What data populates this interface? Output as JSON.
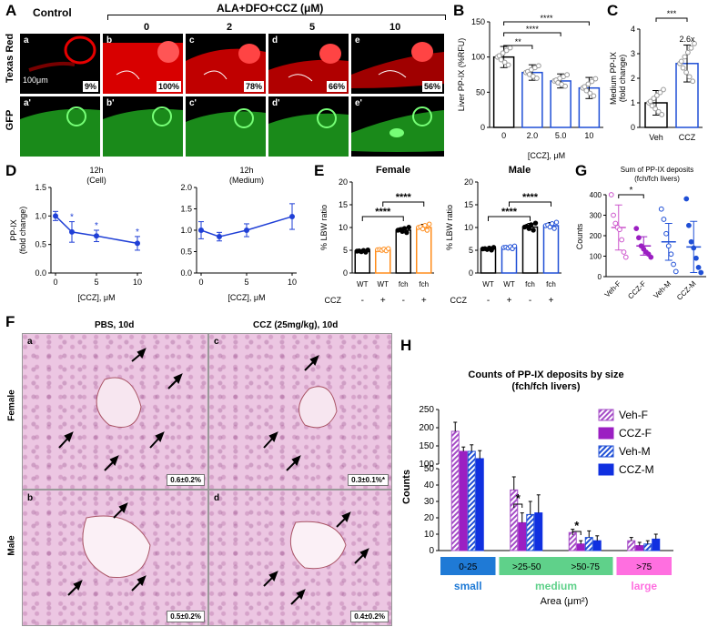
{
  "panelA": {
    "letter": "A",
    "control_label": "Control",
    "treatment_label": "ALA+DFO+CCZ (μM)",
    "conc_labels": [
      "0",
      "2",
      "5",
      "10"
    ],
    "row_labels": [
      "Texas Red",
      "GFP"
    ],
    "scale_bar": "100μm",
    "top_images": [
      {
        "letter": "a",
        "percent": "9%"
      },
      {
        "letter": "b",
        "percent": "100%"
      },
      {
        "letter": "c",
        "percent": "78%"
      },
      {
        "letter": "d",
        "percent": "66%"
      },
      {
        "letter": "e",
        "percent": "56%"
      }
    ],
    "bottom_images": [
      "a'",
      "b'",
      "c'",
      "d'",
      "e'"
    ],
    "colors": {
      "red": "#e60000",
      "green": "#1fa81f"
    }
  },
  "panelB": {
    "letter": "B",
    "chart_data": {
      "type": "bar",
      "categories": [
        "0",
        "2.0",
        "5.0",
        "10"
      ],
      "values": [
        100,
        78,
        66,
        56
      ],
      "errors": [
        15,
        11,
        10,
        15
      ],
      "ylabel": "Liver PP-IX (%RFU)",
      "xlabel": "[CCZ], μM",
      "ylim": [
        0,
        150
      ],
      "yticks": [
        "0",
        "50",
        "100",
        "150"
      ],
      "significance": [
        "**",
        "****",
        "****"
      ],
      "colors": [
        "#000000",
        "#1f4fd6",
        "#1f4fd6",
        "#1f4fd6"
      ]
    }
  },
  "panelC": {
    "letter": "C",
    "chart_data": {
      "type": "bar",
      "categories": [
        "Veh",
        "CCZ"
      ],
      "values": [
        1.0,
        2.6
      ],
      "errors": [
        0.5,
        0.75
      ],
      "ylabel": "Medium PP-IX (fold change)",
      "ylim": [
        0,
        4
      ],
      "yticks": [
        "0",
        "1",
        "2",
        "3",
        "4"
      ],
      "annotation": "2.6x",
      "significance": "***"
    }
  },
  "panelD": {
    "letter": "D",
    "chart_data": [
      {
        "type": "line",
        "title": "12h (Cell)",
        "ylabel": "PP-IX (fold change)",
        "xlabel": "[CCZ], μM",
        "x": [
          0,
          2,
          5,
          10
        ],
        "y": [
          1.0,
          0.72,
          0.65,
          0.52
        ],
        "errors": [
          0.08,
          0.18,
          0.1,
          0.12
        ],
        "xticks": [
          "0",
          "5",
          "10"
        ],
        "yticks": [
          "0.0",
          "0.5",
          "1.0",
          "1.5"
        ],
        "ylim": [
          0,
          1.5
        ],
        "stars": [
          "*",
          "*",
          "*"
        ]
      },
      {
        "type": "line",
        "title": "12h (Medium)",
        "xlabel": "[CCZ], μM",
        "x": [
          0,
          2,
          5,
          10
        ],
        "y": [
          1.0,
          0.85,
          1.0,
          1.32
        ],
        "errors": [
          0.2,
          0.1,
          0.15,
          0.3
        ],
        "xticks": [
          "0",
          "5",
          "10"
        ],
        "yticks": [
          "0.0",
          "0.5",
          "1.0",
          "1.5",
          "2.0"
        ],
        "ylim": [
          0,
          2.0
        ]
      }
    ]
  },
  "panelE": {
    "letter": "E",
    "chart_data": [
      {
        "type": "bar",
        "title": "Female",
        "ylabel": "% LBW ratio",
        "categories": [
          "WT",
          "WT",
          "fch",
          "fch"
        ],
        "ccz": [
          "-",
          "+",
          "-",
          "+"
        ],
        "ccz_label": "CCZ",
        "values": [
          4.8,
          5.1,
          9.4,
          10.0
        ],
        "errors": [
          0.25,
          0.25,
          0.6,
          0.7
        ],
        "ylim": [
          0,
          20
        ],
        "yticks": [
          "0",
          "5",
          "10",
          "15",
          "20"
        ],
        "colors": [
          "#000000",
          "#ff8c1a",
          "#000000",
          "#ff8c1a"
        ],
        "significance": [
          "****",
          "****"
        ]
      },
      {
        "type": "bar",
        "title": "Male",
        "ylabel": "% LBW ratio",
        "categories": [
          "WT",
          "WT",
          "fch",
          "fch"
        ],
        "ccz": [
          "-",
          "+",
          "-",
          "+"
        ],
        "ccz_label": "CCZ",
        "values": [
          5.3,
          5.6,
          10.1,
          10.4
        ],
        "errors": [
          0.3,
          0.3,
          0.8,
          0.7
        ],
        "ylim": [
          0,
          20
        ],
        "yticks": [
          "0",
          "5",
          "10",
          "15",
          "20"
        ],
        "colors": [
          "#000000",
          "#1f4fd6",
          "#000000",
          "#1f4fd6"
        ],
        "significance": [
          "****",
          "****"
        ]
      }
    ]
  },
  "panelG": {
    "letter": "G",
    "chart_data": {
      "type": "scatter",
      "title": "Sum of PP-IX deposits (fch/fch livers)",
      "title_lines": [
        "Sum of PP-IX deposits",
        "(fch/fch livers)"
      ],
      "ylabel": "Counts",
      "categories": [
        "Veh-F",
        "CCZ-F",
        "Veh-M",
        "CCZ-M"
      ],
      "means": [
        240,
        150,
        170,
        145
      ],
      "sd": [
        110,
        45,
        90,
        125
      ],
      "points": [
        [
          400,
          300,
          260,
          240,
          230,
          180,
          120,
          95
        ],
        [
          235,
          190,
          150,
          135,
          120,
          110,
          95
        ],
        [
          330,
          280,
          210,
          150,
          110,
          60,
          25
        ],
        [
          380,
          250,
          170,
          140,
          90,
          45,
          20
        ]
      ],
      "ylim": [
        0,
        400
      ],
      "yticks": [
        "0",
        "100",
        "200",
        "300",
        "400"
      ],
      "colors": [
        "#cc55cc",
        "#9b1fc2",
        "#1f4fd6",
        "#1f4fd6"
      ],
      "significance": "*"
    }
  },
  "panelF": {
    "letter": "F",
    "col_labels": [
      "PBS, 10d",
      "CCZ (25mg/kg), 10d"
    ],
    "row_labels": [
      "Female",
      "Male"
    ],
    "images": [
      {
        "letter": "a",
        "value": "0.6±0.2%"
      },
      {
        "letter": "c",
        "value": "0.3±0.1%*"
      },
      {
        "letter": "b",
        "value": "0.5±0.2%"
      },
      {
        "letter": "d",
        "value": "0.4±0.2%"
      }
    ]
  },
  "panelH": {
    "letter": "H",
    "chart_data": {
      "type": "bar",
      "title_lines": [
        "Counts of PP-IX deposits by size",
        "(fch/fch livers)"
      ],
      "ylabel": "Counts",
      "xlabel": "Area (μm²)",
      "categories": [
        "0-25",
        ">25-50",
        ">50-75",
        ">75"
      ],
      "size_labels": [
        "small",
        "medium",
        "large"
      ],
      "series": [
        {
          "name": "Veh-F",
          "values": [
            190,
            37,
            11,
            6
          ],
          "errors": [
            25,
            8,
            2,
            2
          ],
          "color": "#a54dc7",
          "hatched": true
        },
        {
          "name": "CCZ-F",
          "values": [
            135,
            17,
            4,
            3
          ],
          "errors": [
            12,
            6,
            2,
            2
          ],
          "color": "#9b1fc2",
          "hatched": false
        },
        {
          "name": "Veh-M",
          "values": [
            135,
            22,
            8,
            4
          ],
          "errors": [
            18,
            8,
            4,
            2
          ],
          "color": "#1f4fd6",
          "hatched": true
        },
        {
          "name": "CCZ-M",
          "values": [
            115,
            23,
            6,
            7
          ],
          "errors": [
            22,
            11,
            3,
            3
          ],
          "color": "#1030e0",
          "hatched": false
        }
      ],
      "yticks_low": [
        "0",
        "10",
        "20",
        "30",
        "40",
        "50"
      ],
      "yticks_high": [
        "100",
        "150",
        "200",
        "250"
      ],
      "significance": [
        "*",
        "*"
      ],
      "size_colors": [
        "#1f7ad6",
        "#5fd18a",
        "#ff6fe0"
      ]
    }
  }
}
